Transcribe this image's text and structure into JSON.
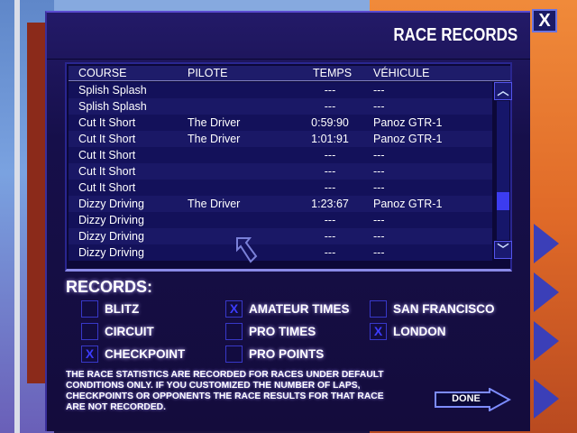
{
  "dialog": {
    "title": "RACE RECORDS",
    "close_label": "X"
  },
  "table": {
    "headers": [
      "COURSE",
      "PILOTE",
      "TEMPS",
      "VÉHICULE"
    ],
    "rows": [
      [
        "Splish Splash",
        "",
        "---",
        "---"
      ],
      [
        "Splish Splash",
        "",
        "---",
        "---"
      ],
      [
        "Cut It Short",
        "The Driver",
        "0:59:90",
        "Panoz GTR-1"
      ],
      [
        "Cut It Short",
        "The Driver",
        "1:01:91",
        "Panoz GTR-1"
      ],
      [
        "Cut It Short",
        "",
        "---",
        "---"
      ],
      [
        "Cut It Short",
        "",
        "---",
        "---"
      ],
      [
        "Cut It Short",
        "",
        "---",
        "---"
      ],
      [
        "Dizzy Driving",
        "The Driver",
        "1:23:67",
        "Panoz GTR-1"
      ],
      [
        "Dizzy Driving",
        "",
        "---",
        "---"
      ],
      [
        "Dizzy Driving",
        "",
        "---",
        "---"
      ],
      [
        "Dizzy Driving",
        "",
        "---",
        "---"
      ]
    ],
    "scroll_position": 0.75
  },
  "records": {
    "title": "RECORDS:",
    "options": [
      {
        "label": "BLITZ",
        "checked": false
      },
      {
        "label": "CIRCUIT",
        "checked": false
      },
      {
        "label": "CHECKPOINT",
        "checked": true
      },
      {
        "label": "AMATEUR TIMES",
        "checked": true
      },
      {
        "label": "PRO TIMES",
        "checked": false
      },
      {
        "label": "PRO POINTS",
        "checked": false
      },
      {
        "label": "SAN FRANCISCO",
        "checked": false
      },
      {
        "label": "LONDON",
        "checked": true
      }
    ],
    "check_mark": "X"
  },
  "note": "THE RACE STATISTICS ARE RECORDED FOR RACES UNDER DEFAULT CONDITIONS ONLY.  IF YOU CUSTOMIZED THE NUMBER OF LAPS, CHECKPOINTS OR OPPONENTS THE RACE RESULTS FOR THAT RACE ARE NOT RECORDED.",
  "done_label": "DONE"
}
